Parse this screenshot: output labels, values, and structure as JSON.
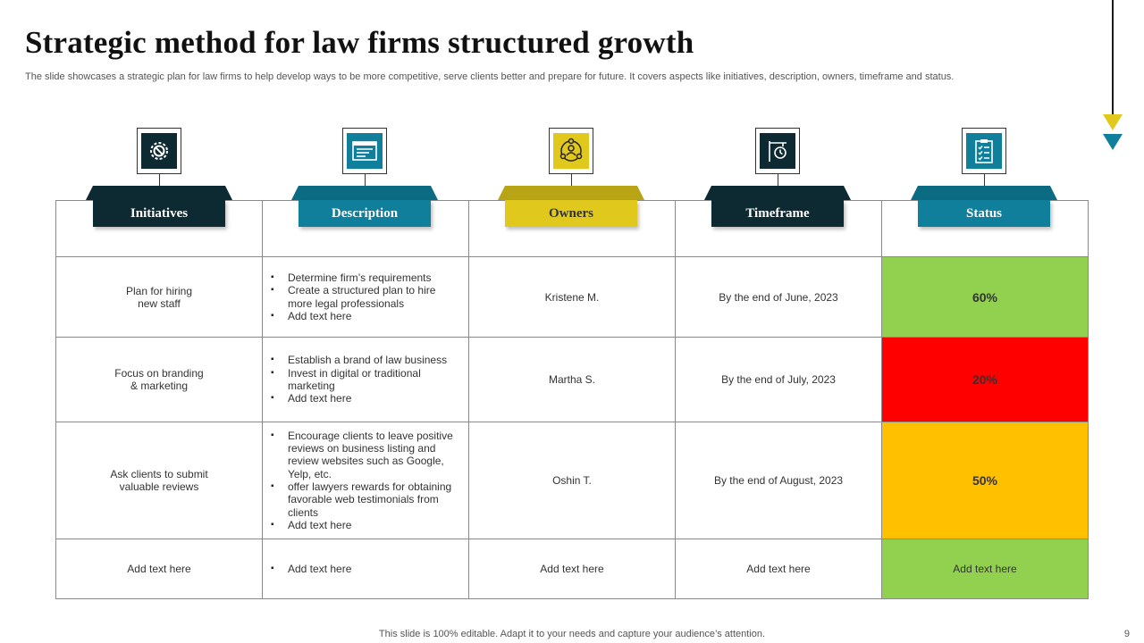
{
  "title": "Strategic method  for law firms structured  growth",
  "subtitle": "The slide showcases a strategic plan for law firms to help develop ways to be more competitive, serve clients better and prepare for future. It covers aspects like initiatives, description, owners, timeframe and status.",
  "colors": {
    "dark": "#0d2a33",
    "teal": "#0f7f9b",
    "yellow": "#e0c81c",
    "green": "#92d050",
    "red": "#ff0000",
    "orange": "#ffc000"
  },
  "columns": [
    {
      "label": "Initiatives",
      "icon": "gear-prohibit-icon"
    },
    {
      "label": "Description",
      "icon": "document-list-icon"
    },
    {
      "label": "Owners",
      "icon": "people-network-icon"
    },
    {
      "label": "Timeframe",
      "icon": "clock-sign-icon"
    },
    {
      "label": "Status",
      "icon": "checklist-clipboard-icon"
    }
  ],
  "rows": [
    {
      "initiative": "Plan for hiring\nnew staff",
      "description": [
        "Determine firm’s requirements",
        "Create a structured plan to hire more legal professionals",
        "Add text here"
      ],
      "owner": "Kristene M.",
      "timeframe": "By the end of June, 2023",
      "status": "60%",
      "status_color": "green"
    },
    {
      "initiative": "Focus on branding\n& marketing",
      "description": [
        "Establish a brand of law business",
        "Invest in digital or traditional marketing",
        "Add text here"
      ],
      "owner": "Martha S.",
      "timeframe": "By the end of July, 2023",
      "status": "20%",
      "status_color": "red"
    },
    {
      "initiative": "Ask clients to submit\nvaluable reviews",
      "description": [
        "Encourage clients to leave positive reviews on business listing and review websites such as Google, Yelp, etc.",
        "offer lawyers rewards for obtaining favorable web testimonials from clients",
        "Add text here"
      ],
      "owner": "Oshin T.",
      "timeframe": "By the end of August, 2023",
      "status": "50%",
      "status_color": "orange"
    },
    {
      "initiative": "Add text here",
      "description": [
        "Add text here"
      ],
      "owner": "Add text here",
      "timeframe": "Add text here",
      "status": "Add text here",
      "status_color": "green"
    }
  ],
  "footer": "This slide is 100% editable. Adapt it to your needs and capture your audience’s attention.",
  "page_number": "9"
}
